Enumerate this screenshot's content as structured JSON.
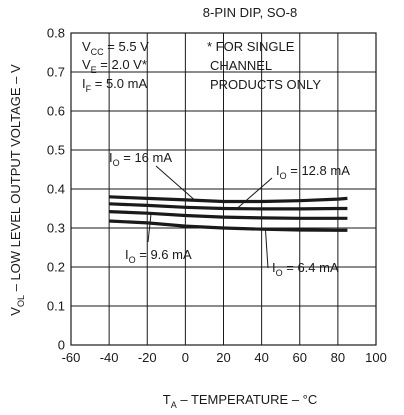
{
  "chart_data": {
    "type": "line",
    "title": "8-PIN DIP, SO-8",
    "xlabel": {
      "main": "T",
      "sub": "A",
      "rest": " – TEMPERATURE – °C"
    },
    "ylabel": {
      "main": "V",
      "sub": "OL",
      "rest": " – LOW LEVEL OUTPUT VOLTAGE – V"
    },
    "xlim": [
      -60,
      100
    ],
    "ylim": [
      0,
      0.8
    ],
    "x_ticks": [
      "-60",
      "-40",
      "-20",
      "0",
      "20",
      "40",
      "60",
      "80",
      "100"
    ],
    "y_ticks": [
      "0",
      "0.1",
      "0.2",
      "0.3",
      "0.4",
      "0.5",
      "0.6",
      "0.7",
      "0.8"
    ],
    "grid": true,
    "conditions": [
      {
        "main": "V",
        "sub": "CC",
        "rest": " = 5.5 V"
      },
      {
        "main": "V",
        "sub": "E",
        "rest": " = 2.0 V*"
      },
      {
        "main": "I",
        "sub": "F",
        "rest": " = 5.0 mA"
      }
    ],
    "footnote": [
      "* FOR SINGLE",
      "CHANNEL",
      "PRODUCTS ONLY"
    ],
    "series": [
      {
        "name": {
          "main": "I",
          "sub": "O",
          "rest": " = 16 mA"
        },
        "x": [
          -40,
          -20,
          0,
          20,
          40,
          60,
          80,
          85
        ],
        "y": [
          0.38,
          0.376,
          0.372,
          0.368,
          0.368,
          0.37,
          0.374,
          0.376
        ]
      },
      {
        "name": {
          "main": "I",
          "sub": "O",
          "rest": " = 12.8 mA"
        },
        "x": [
          -40,
          -20,
          0,
          20,
          40,
          60,
          80,
          85
        ],
        "y": [
          0.362,
          0.358,
          0.353,
          0.35,
          0.349,
          0.349,
          0.35,
          0.35
        ]
      },
      {
        "name": {
          "main": "I",
          "sub": "O",
          "rest": " = 9.6 mA"
        },
        "x": [
          -40,
          -20,
          0,
          20,
          40,
          60,
          80,
          85
        ],
        "y": [
          0.342,
          0.338,
          0.332,
          0.328,
          0.326,
          0.325,
          0.325,
          0.325
        ]
      },
      {
        "name": {
          "main": "I",
          "sub": "O",
          "rest": " = 6.4 mA"
        },
        "x": [
          -40,
          -20,
          0,
          20,
          40,
          60,
          80,
          85
        ],
        "y": [
          0.318,
          0.313,
          0.305,
          0.3,
          0.297,
          0.295,
          0.294,
          0.294
        ]
      }
    ]
  }
}
